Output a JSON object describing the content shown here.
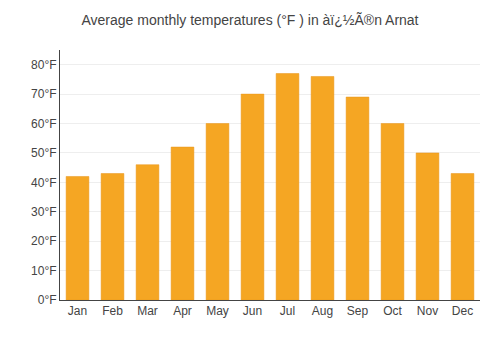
{
  "chart_data": {
    "type": "bar",
    "title": "Average monthly temperatures (°F ) in àï¿½Ã®n Arnat",
    "categories": [
      "Jan",
      "Feb",
      "Mar",
      "Apr",
      "May",
      "Jun",
      "Jul",
      "Aug",
      "Sep",
      "Oct",
      "Nov",
      "Dec"
    ],
    "values": [
      42,
      43,
      46,
      52,
      60,
      70,
      77,
      76,
      69,
      60,
      50,
      43
    ],
    "color": "#F5A623",
    "ylim": [
      0,
      85
    ],
    "yticks": [
      {
        "value": 0,
        "label": "0°F"
      },
      {
        "value": 10,
        "label": "10°F"
      },
      {
        "value": 20,
        "label": "20°F"
      },
      {
        "value": 30,
        "label": "30°F"
      },
      {
        "value": 40,
        "label": "40°F"
      },
      {
        "value": 50,
        "label": "50°F"
      },
      {
        "value": 60,
        "label": "60°F"
      },
      {
        "value": 70,
        "label": "70°F"
      },
      {
        "value": 80,
        "label": "80°F"
      }
    ],
    "grid": true
  }
}
